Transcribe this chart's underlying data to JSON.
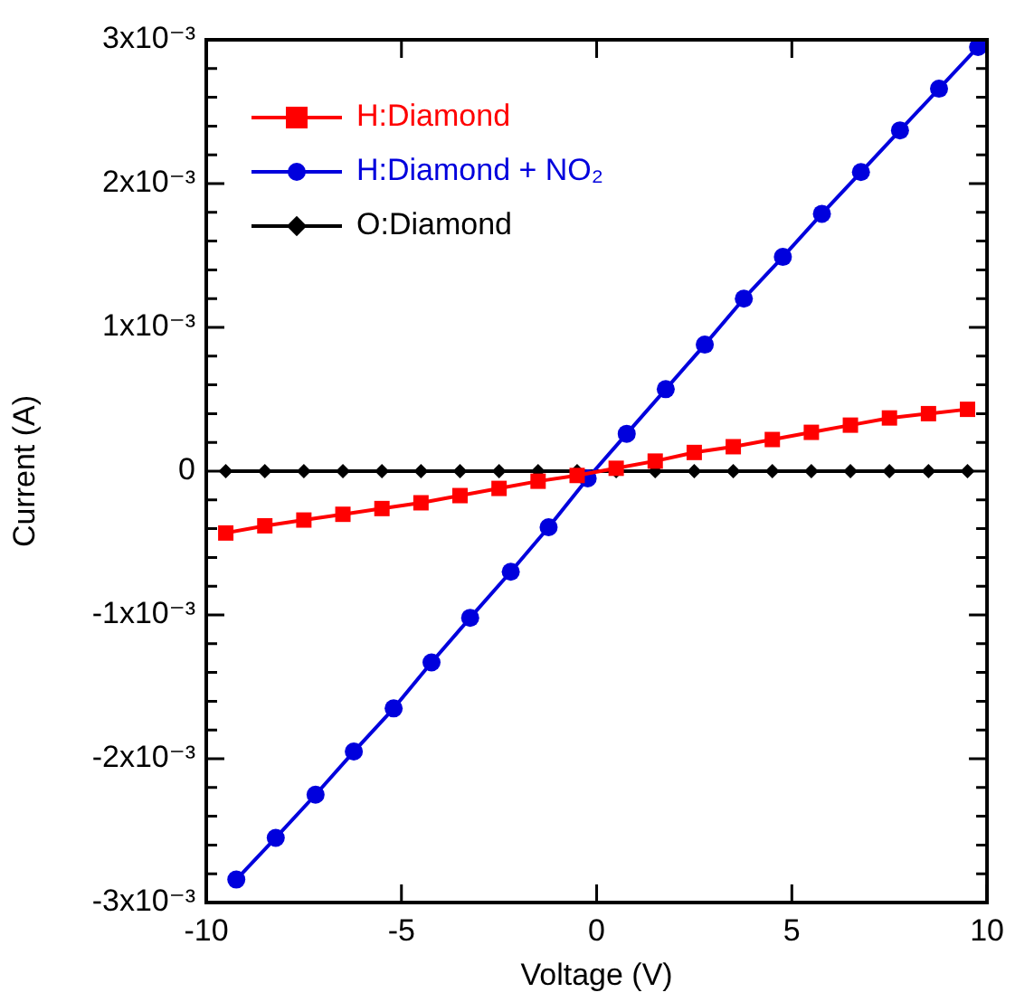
{
  "chart_data": {
    "type": "line",
    "xlabel": "Voltage (V)",
    "ylabel": "Current (A)",
    "xlim": [
      -10,
      10
    ],
    "xticks": [
      -10,
      -5,
      0,
      5,
      10
    ],
    "ylim": [
      -0.003,
      0.003
    ],
    "yticks": [
      {
        "value": -0.003,
        "label": "-3x10⁻³"
      },
      {
        "value": -0.0028,
        "label": null
      },
      {
        "value": -0.0026,
        "label": null
      },
      {
        "value": -0.0024,
        "label": null
      },
      {
        "value": -0.0022,
        "label": null
      },
      {
        "value": -0.002,
        "label": "-2x10⁻³"
      },
      {
        "value": -0.0018,
        "label": null
      },
      {
        "value": -0.0016,
        "label": null
      },
      {
        "value": -0.0014,
        "label": null
      },
      {
        "value": -0.0012,
        "label": null
      },
      {
        "value": -0.001,
        "label": "-1x10⁻³"
      },
      {
        "value": -0.0008,
        "label": null
      },
      {
        "value": -0.0006,
        "label": null
      },
      {
        "value": -0.0004,
        "label": null
      },
      {
        "value": -0.0002,
        "label": null
      },
      {
        "value": 0,
        "label": "0"
      },
      {
        "value": 0.0002,
        "label": null
      },
      {
        "value": 0.0004,
        "label": null
      },
      {
        "value": 0.0006,
        "label": null
      },
      {
        "value": 0.0008,
        "label": null
      },
      {
        "value": 0.001,
        "label": "1x10⁻³"
      },
      {
        "value": 0.0012,
        "label": null
      },
      {
        "value": 0.0014,
        "label": null
      },
      {
        "value": 0.0016,
        "label": null
      },
      {
        "value": 0.0018,
        "label": null
      },
      {
        "value": 0.002,
        "label": "2x10⁻³"
      },
      {
        "value": 0.0022,
        "label": null
      },
      {
        "value": 0.0024,
        "label": null
      },
      {
        "value": 0.0026,
        "label": null
      },
      {
        "value": 0.0028,
        "label": null
      },
      {
        "value": 0.003,
        "label": "3x10⁻³"
      }
    ],
    "grid": false,
    "legend": "top left",
    "line_style": "solid",
    "series": [
      {
        "name": "H:Diamond",
        "color": "#ff0000",
        "marker": "square",
        "x": [
          -9.5,
          -8.5,
          -7.5,
          -6.5,
          -5.5,
          -4.5,
          -3.5,
          -2.5,
          -1.5,
          -0.5,
          0.5,
          1.5,
          2.5,
          3.5,
          4.5,
          5.5,
          6.5,
          7.5,
          8.5,
          9.5
        ],
        "values": [
          -0.00043,
          -0.00038,
          -0.00034,
          -0.0003,
          -0.00026,
          -0.00022,
          -0.00017,
          -0.00012,
          -7e-05,
          -3e-05,
          2e-05,
          7e-05,
          0.00013,
          0.00017,
          0.00022,
          0.00027,
          0.00032,
          0.00037,
          0.0004,
          0.00043
        ]
      },
      {
        "name": "H:Diamond + NO₂",
        "color": "#0000dd",
        "marker": "circle",
        "x": [
          -9.23,
          -8.22,
          -7.2,
          -6.22,
          -5.2,
          -4.23,
          -3.24,
          -2.2,
          -1.23,
          -0.23,
          0.77,
          1.77,
          2.77,
          3.77,
          4.77,
          5.77,
          6.77,
          7.77,
          8.77,
          9.77
        ],
        "values": [
          -0.00284,
          -0.00255,
          -0.00225,
          -0.00195,
          -0.00165,
          -0.00133,
          -0.00102,
          -0.0007,
          -0.00039,
          -5e-05,
          0.00026,
          0.00057,
          0.00088,
          0.0012,
          0.00149,
          0.00179,
          0.00208,
          0.00237,
          0.00266,
          0.00295
        ]
      },
      {
        "name": "O:Diamond",
        "color": "#000000",
        "marker": "diamond",
        "x": [
          -9.5,
          -8.5,
          -7.5,
          -6.5,
          -5.5,
          -4.5,
          -3.5,
          -2.5,
          -1.5,
          -0.5,
          0.5,
          1.5,
          2.5,
          3.5,
          4.5,
          5.5,
          6.5,
          7.5,
          8.5,
          9.5
        ],
        "values": [
          0,
          0,
          0,
          0,
          0,
          0,
          0,
          0,
          0,
          0,
          0,
          0,
          0,
          0,
          0,
          0,
          0,
          0,
          0,
          0
        ]
      }
    ]
  }
}
